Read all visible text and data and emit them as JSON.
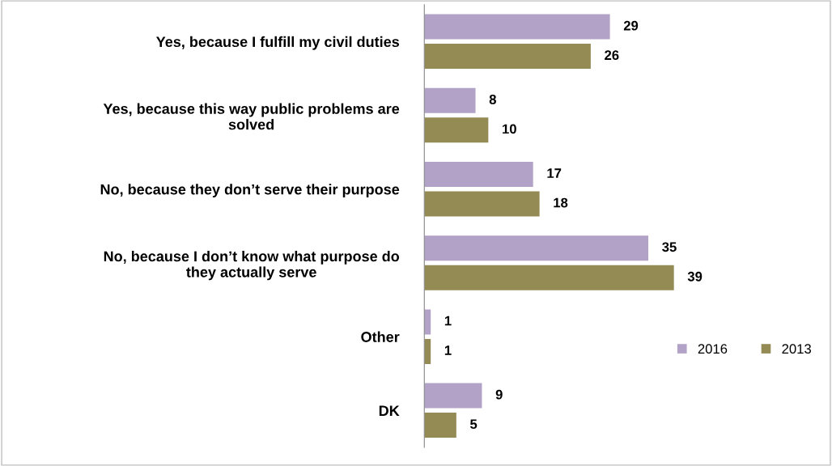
{
  "chart_data": {
    "type": "bar",
    "orientation": "horizontal",
    "categories": [
      "Yes, because I fulfill my civil duties",
      "Yes, because this way public problems are\nsolved",
      "No, because they don’t serve their purpose",
      "No, because I don’t know what purpose do\nthey actually serve",
      "Other",
      "DK"
    ],
    "series": [
      {
        "name": "2016",
        "color": "#b3a2c7",
        "values": [
          29,
          8,
          17,
          35,
          1,
          9
        ]
      },
      {
        "name": "2013",
        "color": "#948a54",
        "values": [
          26,
          10,
          18,
          39,
          1,
          5
        ]
      }
    ],
    "data_labels": true,
    "legend": "right",
    "grid": false,
    "tick_labels": "y"
  }
}
